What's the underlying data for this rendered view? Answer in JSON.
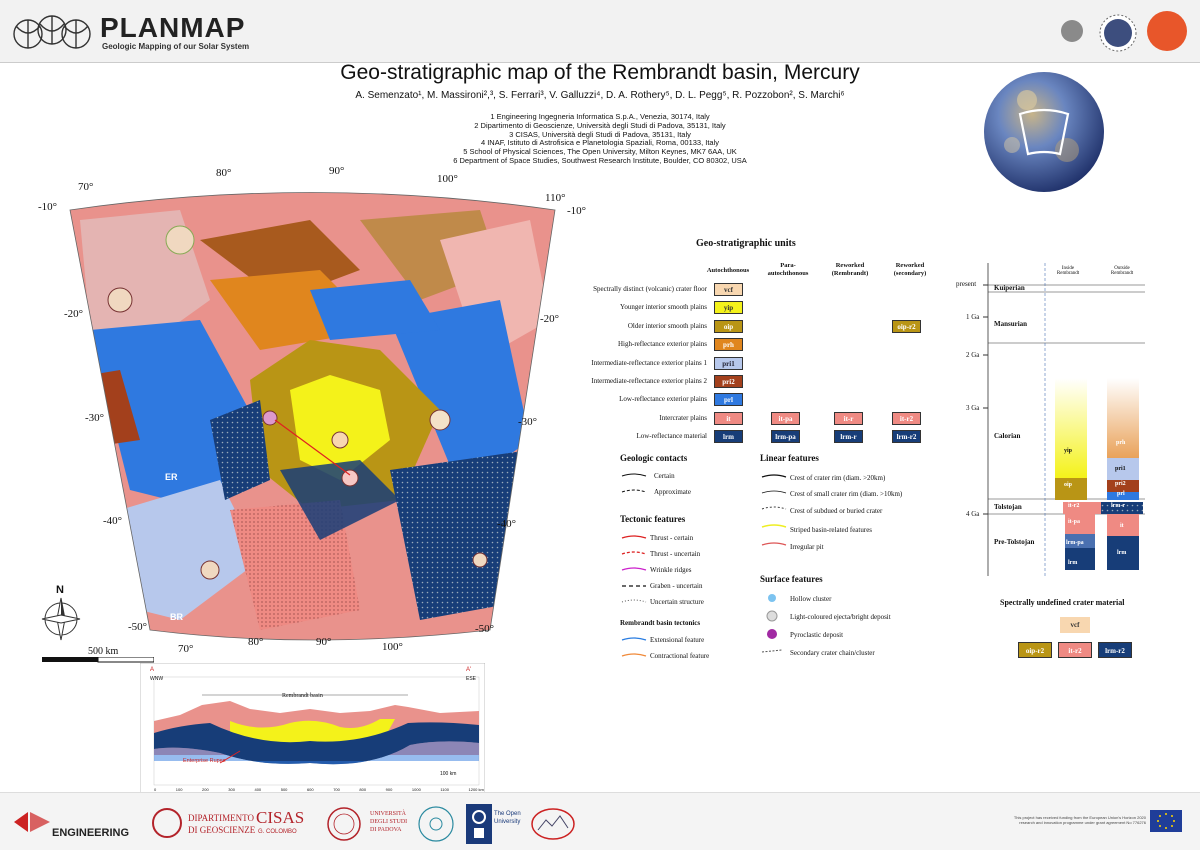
{
  "header": {
    "logo_title": "PLANMAP",
    "logo_subtitle": "Geologic Mapping of our Solar System",
    "colors": {
      "grey": "#8a8a8a",
      "navy": "#3d4e7e",
      "orange": "#e8562a"
    }
  },
  "title": "Geo-stratigraphic map of the Rembrandt basin, Mercury",
  "authors": "A. Semenzato¹, M. Massironi²,³, S. Ferrari³, V. Galluzzi⁴, D. A. Rothery⁵, D. L. Pegg⁵, R. Pozzobon², S. Marchi⁶",
  "affiliations": [
    "1  Engineering Ingegneria Informatica S.p.A., Venezia, 30174, Italy",
    "2  Dipartimento di Geoscienze, Università degli Studi di Padova, 35131, Italy",
    "3  CISAS, Università degli Studi di Padova, 35131, Italy",
    "4  INAF, Istituto di Astrofisica e Planetologia Spaziali, Roma, 00133, Italy",
    "5  School of Physical Sciences, The Open University, Milton Keynes, MK7 6AA, UK",
    "6  Department of Space Studies, Southwest Research Institute, Boulder, CO 80302, USA"
  ],
  "map": {
    "lon_top": [
      "70°",
      "80°",
      "90°",
      "100°",
      "110°"
    ],
    "lon_bottom": [
      "70°",
      "80°",
      "90°",
      "100°"
    ],
    "lat_left": [
      "-10°",
      "-20°",
      "-30°",
      "-40°",
      "-50°"
    ],
    "lat_right": [
      "-10°",
      "-20°",
      "-30°",
      "-40°",
      "-50°"
    ],
    "labels": {
      "er": "ER",
      "br": "BR"
    },
    "north": "N",
    "scale": "500 km"
  },
  "units": {
    "title": "Geo-stratigraphic units",
    "columns": [
      "Autochthonous",
      "Para-\nautochthonous",
      "Reworked\n(Rembrandt)",
      "Reworked\n(secondary)"
    ],
    "rows": [
      {
        "label": "Spectrally distinct (volcanic) crater floor",
        "code": "vcf",
        "color": "#f8d7b0",
        "text": "#333"
      },
      {
        "label": "Younger interior smooth plains",
        "code": "yip",
        "color": "#f4f21a",
        "text": "#333"
      },
      {
        "label": "Older interior smooth plains",
        "code": "oip",
        "color": "#b99515",
        "text": "#fff",
        "secondary": "oip-r2"
      },
      {
        "label": "High-reflectance exterior plains",
        "code": "prh",
        "color": "#e0861e",
        "text": "#fff"
      },
      {
        "label": "Intermediate-reflectance exterior plains 1",
        "code": "pri1",
        "color": "#b7c8ec",
        "text": "#223"
      },
      {
        "label": "Intermediate-reflectance exterior plains 2",
        "code": "pri2",
        "color": "#a3401c",
        "text": "#fff"
      },
      {
        "label": "Low-reflectance exterior plains",
        "code": "prl",
        "color": "#2f79e0",
        "text": "#fff"
      },
      {
        "label": "Intercrater plains",
        "code": "it",
        "color": "#ef8a83",
        "text": "#fff",
        "para": "it-pa",
        "rem": "it-r",
        "secondary": "it-r2"
      },
      {
        "label": "Low-reflectance material",
        "code": "lrm",
        "color": "#173d78",
        "text": "#fff",
        "para": "lrm-pa",
        "rem": "lrm-r",
        "secondary": "lrm-r2"
      }
    ]
  },
  "contacts": {
    "title": "Geologic contacts",
    "items": [
      "Certain",
      "Approximate"
    ]
  },
  "tectonic": {
    "title": "Tectonic features",
    "items": [
      "Thrust - certain",
      "Thrust - uncertain",
      "Wrinkle ridges",
      "Graben - uncertain",
      "Uncertain structure"
    ],
    "basin_title": "Rembrandt basin tectonics",
    "basin_items": [
      "Extensional feature",
      "Contractional feature"
    ]
  },
  "linear": {
    "title": "Linear features",
    "items": [
      "Crest of crater rim (diam. >20km)",
      "Crest of small crater rim (diam. >10km)",
      "Crest of subdued or buried crater",
      "Striped basin-related features",
      "Irregular pit"
    ]
  },
  "surface": {
    "title": "Surface features",
    "items": [
      "Hollow cluster",
      "Light-coloured ejecta/bright deposit",
      "Pyroclastic deposit",
      "Secondary crater chain/cluster"
    ]
  },
  "chrono": {
    "ages": [
      "present",
      "1 Ga",
      "2 Ga",
      "3 Ga",
      "4 Ga"
    ],
    "periods": [
      "Kuiperian",
      "Mansurian",
      "Calorian",
      "Tolstojan",
      "Pre-Tolstojan"
    ],
    "col_inside": "Inside\nRembrandt",
    "col_outside": "Outside\nRembrandt",
    "inside_units": [
      "yip",
      "oip",
      "it-r2",
      "it-pa",
      "lrm-pa",
      "lrm"
    ],
    "outside_units": [
      "prh",
      "pri1",
      "pri2",
      "prl",
      "lrm-r",
      "it",
      "lrm"
    ]
  },
  "undefined": {
    "title": "Spectrally undefined crater material",
    "items": [
      "vcf",
      "oip-r2",
      "it-r2",
      "lrm-r2"
    ]
  },
  "profile": {
    "a_left": "A",
    "a_right": "A'",
    "dir_left": "WNW",
    "dir_right": "ESE",
    "basin_label": "Rembrandt basin",
    "feature_label": "Enterprise Rupes",
    "scale": "100 km",
    "x_ticks": [
      "0",
      "100",
      "200",
      "300",
      "400",
      "500",
      "600",
      "700",
      "800",
      "900",
      "1000",
      "1100",
      "1200 km"
    ]
  },
  "footer": {
    "engineering": "ENGINEERING",
    "dip1": "DIPARTIMENTO",
    "dip2": "DI GEOSCIENZE",
    "cisas": "CISAS",
    "cisas_sub": "G. COLOMBO",
    "unipd1": "UNIVERSITÀ",
    "unipd2": "DEGLI STUDI",
    "unipd3": "DI PADOVA",
    "ou1": "The Open",
    "ou2": "University",
    "funding": "This project has received funding from the European Union's Horizon 2020 research and innovation programme under grant agreement No 776276"
  }
}
